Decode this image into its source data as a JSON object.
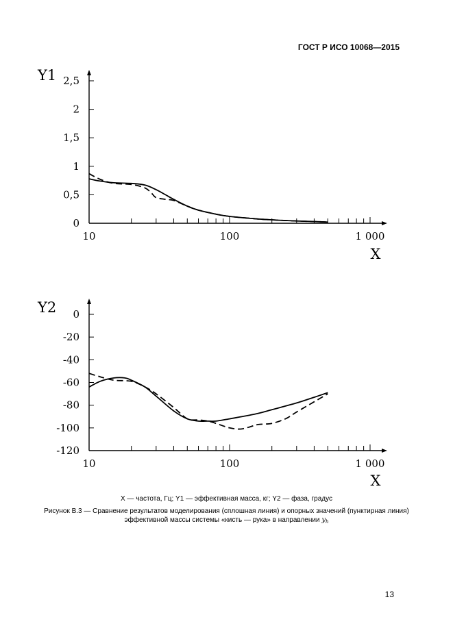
{
  "header": {
    "standard": "ГОСТ Р ИСО 10068—2015"
  },
  "chart_data": [
    {
      "type": "line",
      "ylabel": "Y1",
      "xlabel": "X",
      "xscale": "log",
      "xlim": [
        10,
        1000
      ],
      "ylim": [
        0,
        2.5
      ],
      "xticks": [
        "10",
        "100",
        "1 000"
      ],
      "yticks": [
        {
          "v": 0,
          "t": "0"
        },
        {
          "v": 0.5,
          "t": "0,5"
        },
        {
          "v": 1,
          "t": "1"
        },
        {
          "v": 1.5,
          "t": "1,5"
        },
        {
          "v": 2,
          "t": "2"
        },
        {
          "v": 2.5,
          "t": "2,5"
        }
      ],
      "series": [
        {
          "style": "solid",
          "x": [
            10,
            12,
            15,
            20,
            25,
            30,
            35,
            40,
            50,
            60,
            80,
            100,
            150,
            200,
            300,
            400,
            500
          ],
          "y": [
            0.78,
            0.74,
            0.71,
            0.7,
            0.67,
            0.59,
            0.5,
            0.42,
            0.3,
            0.23,
            0.16,
            0.12,
            0.08,
            0.06,
            0.04,
            0.03,
            0.02
          ]
        },
        {
          "style": "dashed",
          "x": [
            10,
            12,
            15,
            20,
            25,
            28,
            30,
            35,
            40,
            50,
            60,
            80,
            100,
            150,
            200,
            300,
            400,
            500
          ],
          "y": [
            0.87,
            0.77,
            0.7,
            0.68,
            0.62,
            0.52,
            0.45,
            0.42,
            0.4,
            0.3,
            0.23,
            0.16,
            0.12,
            0.08,
            0.06,
            0.04,
            0.03,
            0.02
          ]
        }
      ]
    },
    {
      "type": "line",
      "ylabel": "Y2",
      "xlabel": "X",
      "xscale": "log",
      "xlim": [
        10,
        1000
      ],
      "ylim": [
        -120,
        0
      ],
      "xticks": [
        "10",
        "100",
        "1 000"
      ],
      "yticks": [
        {
          "v": 0,
          "t": "0"
        },
        {
          "v": -20,
          "t": "-20"
        },
        {
          "v": -40,
          "t": "-40"
        },
        {
          "v": -60,
          "t": "-60"
        },
        {
          "v": -80,
          "t": "-80"
        },
        {
          "v": -100,
          "t": "-100"
        },
        {
          "v": -120,
          "t": "-120"
        }
      ],
      "series": [
        {
          "style": "solid",
          "x": [
            10,
            12,
            15,
            18,
            20,
            25,
            30,
            40,
            50,
            60,
            70,
            80,
            100,
            150,
            200,
            300,
            400,
            500
          ],
          "y": [
            -64,
            -59,
            -56,
            -56,
            -58,
            -64,
            -72,
            -85,
            -92,
            -94,
            -94,
            -94,
            -92,
            -88,
            -84,
            -78,
            -73,
            -69
          ]
        },
        {
          "style": "dashed",
          "x": [
            10,
            12,
            15,
            20,
            25,
            30,
            40,
            50,
            60,
            70,
            80,
            100,
            120,
            140,
            160,
            200,
            250,
            300,
            400,
            500
          ],
          "y": [
            -52,
            -55,
            -58,
            -59,
            -64,
            -70,
            -82,
            -92,
            -93,
            -94,
            -96,
            -100,
            -101,
            -99,
            -97,
            -96,
            -92,
            -86,
            -77,
            -70
          ]
        }
      ]
    }
  ],
  "caption": {
    "legend": "X — частота, Гц; Y1 — эффективная масса, кг; Y2 — фаза, градус",
    "title_line1": "Рисунок В.3 — Сравнение результатов моделирования (сплошная линия) и опорных значений (пунктирная линия)",
    "title_line2_prefix": "эффективной массы системы «кисть — рука» в направлении",
    "title_line2_var": "y",
    "title_line2_sub": "h"
  },
  "page_number": "13"
}
